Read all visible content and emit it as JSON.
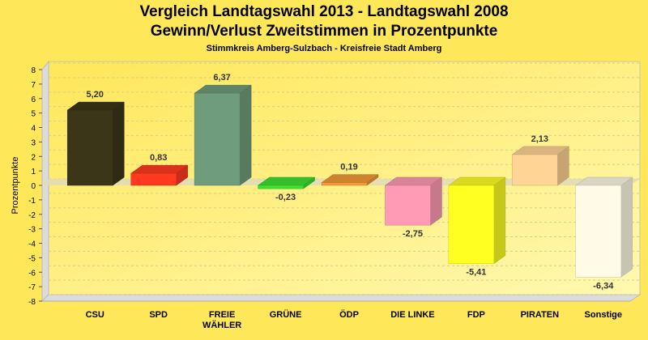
{
  "chart_data": {
    "type": "bar",
    "title": "Vergleich Landtagswahl 2013 - Landtagswahl 2008",
    "subtitle": "Gewinn/Verlust Zweitstimmen in Prozentpunkte",
    "subtitle2": "Stimmkreis Amberg-Sulzbach - Kreisfreie Stadt Amberg",
    "xlabel": "",
    "ylabel": "Prozentpunkte",
    "ylim": [
      -8,
      8
    ],
    "yticks": [
      8,
      7,
      6,
      5,
      4,
      3,
      2,
      1,
      0,
      -1,
      -2,
      -3,
      -4,
      -5,
      -6,
      -7,
      -8
    ],
    "grid": true,
    "categories": [
      [
        "CSU"
      ],
      [
        "SPD"
      ],
      [
        "FREIE",
        "WÄHLER"
      ],
      [
        "GRÜNE"
      ],
      [
        "ÖDP"
      ],
      [
        "DIE LINKE"
      ],
      [
        "FDP"
      ],
      [
        "PIRATEN"
      ],
      [
        "Sonstige"
      ]
    ],
    "values": [
      5.2,
      0.83,
      6.37,
      -0.23,
      0.19,
      -2.75,
      -5.41,
      2.13,
      -6.34
    ],
    "value_labels": [
      "5,20",
      "0,83",
      "6,37",
      "-0,23",
      "0,19",
      "-2,75",
      "-5,41",
      "2,13",
      "-6,34"
    ],
    "colors": [
      "#3b3618",
      "#ff3a1f",
      "#6f9c7c",
      "#3ee030",
      "#f49a36",
      "#ff9bb4",
      "#ffff22",
      "#ffd494",
      "#fffbe6"
    ]
  }
}
